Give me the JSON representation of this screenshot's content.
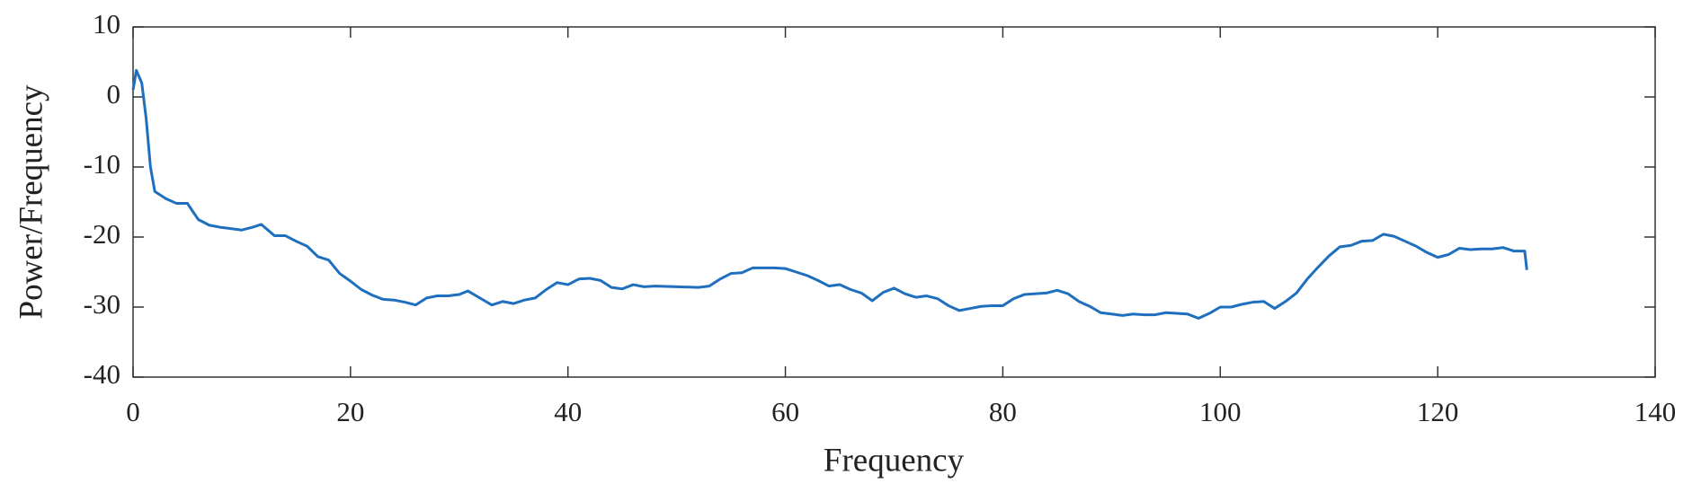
{
  "chart_data": {
    "type": "line",
    "xlabel": "Frequency",
    "ylabel": "Power/Frequency",
    "x": [
      0,
      0.3,
      0.8,
      1.2,
      1.6,
      2,
      3,
      4,
      5,
      6,
      7,
      8,
      9,
      10,
      11,
      11.8,
      13,
      14,
      15,
      16,
      17,
      18,
      19,
      20,
      21,
      22,
      23,
      24,
      25,
      26,
      27,
      28,
      29,
      30,
      30.8,
      32,
      33,
      34,
      35,
      36,
      37,
      38,
      39,
      40,
      41,
      42,
      43,
      44,
      45,
      46,
      47,
      48,
      50,
      52,
      53,
      54,
      55,
      56,
      57,
      58,
      59,
      60,
      61,
      62,
      63,
      64,
      65,
      66,
      67,
      68,
      69,
      70,
      71,
      72,
      73,
      74,
      75,
      76,
      77,
      78,
      79,
      80,
      81,
      82,
      83,
      84,
      85,
      86,
      87,
      88,
      89,
      90,
      91,
      92,
      93,
      94,
      95,
      96,
      97,
      98,
      99,
      100,
      101,
      102,
      103,
      104,
      105,
      106,
      107,
      108,
      109,
      110,
      111,
      112,
      113,
      114,
      115,
      116,
      117,
      118,
      119,
      120,
      121,
      122,
      123,
      124,
      125,
      126,
      127,
      128,
      128.2
    ],
    "values": [
      1,
      3.8,
      2,
      -3,
      -10,
      -13.5,
      -14.5,
      -15.2,
      -15.2,
      -17.5,
      -18.3,
      -18.6,
      -18.8,
      -19,
      -18.6,
      -18.2,
      -19.8,
      -19.8,
      -20.6,
      -21.3,
      -22.8,
      -23.3,
      -25.2,
      -26.3,
      -27.5,
      -28.3,
      -28.9,
      -29,
      -29.3,
      -29.7,
      -28.7,
      -28.4,
      -28.4,
      -28.2,
      -27.7,
      -28.8,
      -29.7,
      -29.2,
      -29.5,
      -29,
      -28.7,
      -27.5,
      -26.5,
      -26.8,
      -26,
      -25.9,
      -26.2,
      -27.2,
      -27.4,
      -26.8,
      -27.1,
      -27,
      -27.1,
      -27.2,
      -27,
      -26,
      -25.2,
      -25.1,
      -24.4,
      -24.4,
      -24.4,
      -24.5,
      -25,
      -25.5,
      -26.2,
      -27,
      -26.8,
      -27.5,
      -28,
      -29.1,
      -27.9,
      -27.3,
      -28.1,
      -28.6,
      -28.4,
      -28.8,
      -29.8,
      -30.5,
      -30.2,
      -29.9,
      -29.8,
      -29.8,
      -28.8,
      -28.2,
      -28.1,
      -28,
      -27.6,
      -28.1,
      -29.2,
      -29.9,
      -30.8,
      -31,
      -31.2,
      -31,
      -31.1,
      -31.1,
      -30.8,
      -30.9,
      -31,
      -31.6,
      -30.9,
      -30,
      -30,
      -29.6,
      -29.3,
      -29.2,
      -30.2,
      -29.2,
      -28,
      -26,
      -24.3,
      -22.7,
      -21.4,
      -21.2,
      -20.6,
      -20.5,
      -19.6,
      -19.9,
      -20.6,
      -21.3,
      -22.2,
      -22.9,
      -22.5,
      -21.6,
      -21.8,
      -21.7,
      -21.7,
      -21.5,
      -22,
      -22,
      -24.7
    ],
    "color": "#1f6fbf",
    "xlim": [
      0,
      140
    ],
    "xticks": [
      0,
      20,
      40,
      60,
      80,
      100,
      120,
      140
    ],
    "ylim": [
      -40,
      10
    ],
    "yticks": [
      -40,
      -30,
      -20,
      -10,
      0,
      10
    ]
  }
}
